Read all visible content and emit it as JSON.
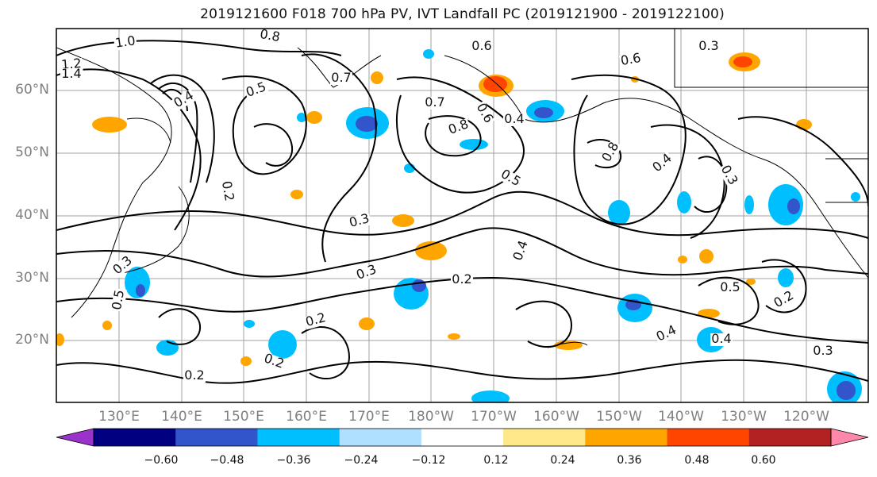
{
  "title": "2019121600 F018 700 hPa PV, IVT Landfall PC (2019121900 - 2019122100)",
  "map": {
    "lat_ticks": [
      "60°N",
      "50°N",
      "40°N",
      "30°N",
      "20°N"
    ],
    "lon_ticks": [
      "130°E",
      "140°E",
      "150°E",
      "160°E",
      "170°E",
      "180°W",
      "170°W",
      "160°W",
      "150°W",
      "140°W",
      "130°W",
      "120°W"
    ],
    "contour_labels": [
      "1.0",
      "0.8",
      "0.6",
      "0.3",
      "1.2",
      "1.4",
      "0.4",
      "0.5",
      "0.7",
      "0.8",
      "0.6",
      "0.4",
      "0.3",
      "0.7",
      "0.6",
      "0.8",
      "0.5",
      "0.4",
      "0.2",
      "0.3",
      "0.4",
      "0.3",
      "0.5",
      "0.2",
      "0.3",
      "0.2",
      "0.4",
      "0.2",
      "0.4",
      "0.5",
      "0.2",
      "0.3",
      "0.2"
    ],
    "colors": {
      "contour": "#000000",
      "grid": "#a0a0a0",
      "coast": "#000000"
    }
  },
  "colorbar": {
    "ticks": [
      "−0.60",
      "−0.48",
      "−0.36",
      "−0.24",
      "−0.12",
      "0.12",
      "0.24",
      "0.36",
      "0.48",
      "0.60"
    ],
    "colors": [
      "#9933cc",
      "#000080",
      "#3355cc",
      "#00bfff",
      "#b0e0ff",
      "#ffffff",
      "#ffe88a",
      "#ffa500",
      "#ff4500",
      "#b22222",
      "#ff88aa"
    ]
  }
}
